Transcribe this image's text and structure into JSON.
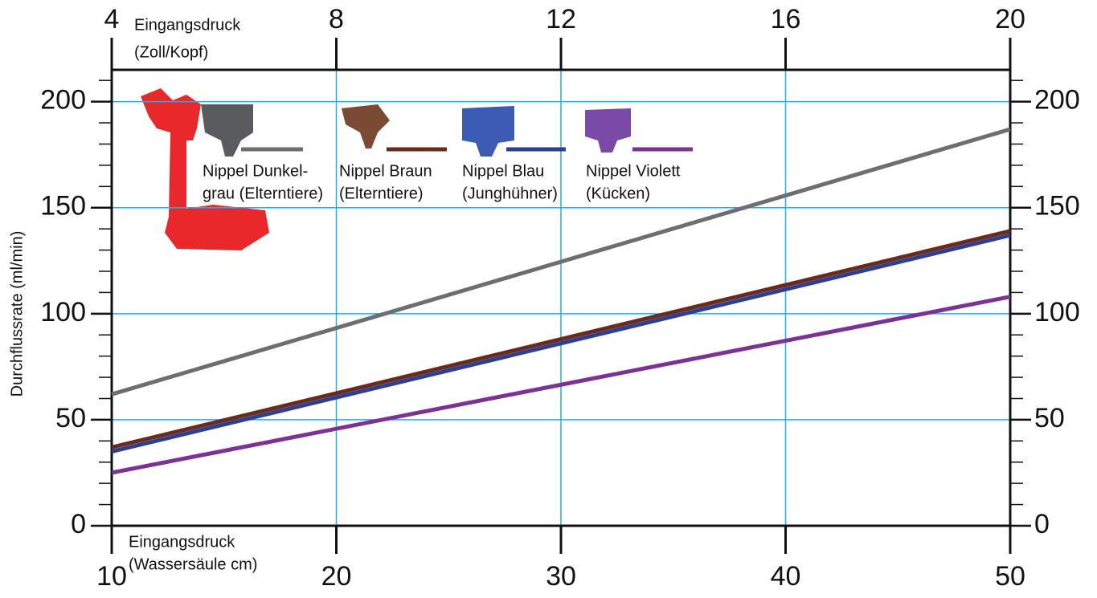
{
  "chart_data": {
    "type": "line",
    "y_label": "Durchflussrate (ml/min)",
    "x_label": [
      "Eingangsdruck",
      "(Wassersäule cm)"
    ],
    "x2_label": [
      "Eingangsdruck",
      "(Zoll/Kopf)"
    ],
    "x": [
      10,
      50
    ],
    "series": [
      {
        "name": [
          "Nippel Dunkel-",
          "grau (Elterntiere)"
        ],
        "color": "#6d6e71",
        "values": [
          62,
          187
        ]
      },
      {
        "name": [
          "Nippel Braun",
          "(Elterntiere)"
        ],
        "color": "#6b2a1a",
        "values": [
          37,
          139
        ]
      },
      {
        "name": [
          "Nippel Blau",
          "(Junghühner)"
        ],
        "color": "#2e3f8f",
        "values": [
          35,
          137
        ]
      },
      {
        "name": [
          "Nippel Violett",
          "(Kücken)"
        ],
        "color": "#7b3294",
        "values": [
          25,
          108
        ]
      }
    ],
    "xlim": [
      10,
      50
    ],
    "xticks": [
      10,
      20,
      30,
      40,
      50
    ],
    "x2lim": [
      4,
      20
    ],
    "x2ticks": [
      4,
      8,
      12,
      16,
      20
    ],
    "ylim": [
      0,
      215
    ],
    "yticks": [
      0,
      50,
      100,
      150,
      200
    ],
    "y_minor_ticks": [
      10,
      20,
      30,
      40,
      60,
      70,
      80,
      90,
      110,
      120,
      130,
      140,
      160,
      170,
      180,
      190,
      210
    ],
    "grid": true,
    "grid_color": "#29abe2"
  }
}
